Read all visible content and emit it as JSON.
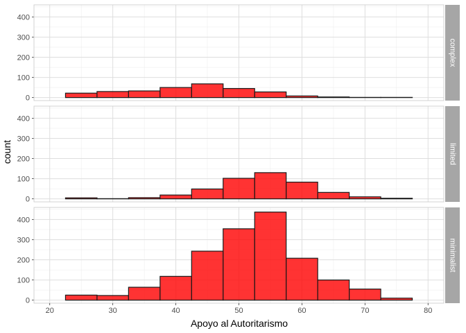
{
  "chart_data": {
    "type": "bar",
    "subtype": "faceted-histogram",
    "xlabel": "Apoyo al Autoritarismo",
    "ylabel": "count",
    "xlim": [
      17.5,
      82.5
    ],
    "ylim": [
      -15,
      460
    ],
    "x_ticks": [
      20,
      30,
      40,
      50,
      60,
      70,
      80
    ],
    "y_ticks": [
      0,
      100,
      200,
      300,
      400
    ],
    "bin_width": 5,
    "bin_centers": [
      25,
      30,
      35,
      40,
      45,
      50,
      55,
      60,
      65,
      70,
      75
    ],
    "grid": true,
    "fill_color": "#FF0000",
    "fill_opacity": 0.8,
    "outline_color": "#1a1a1a",
    "panel_background": "#ffffff",
    "grid_color": "#ebebeb",
    "strip_background": "#a6a6a6",
    "strip_text_color": "#ffffff",
    "facets": [
      {
        "name": "complex",
        "values": [
          22,
          30,
          33,
          50,
          68,
          45,
          28,
          8,
          3,
          1,
          1
        ]
      },
      {
        "name": "limited",
        "values": [
          5,
          1,
          6,
          19,
          49,
          102,
          130,
          83,
          32,
          10,
          3
        ]
      },
      {
        "name": "minimalist",
        "values": [
          25,
          23,
          64,
          118,
          243,
          354,
          437,
          208,
          100,
          55,
          10
        ]
      }
    ]
  }
}
